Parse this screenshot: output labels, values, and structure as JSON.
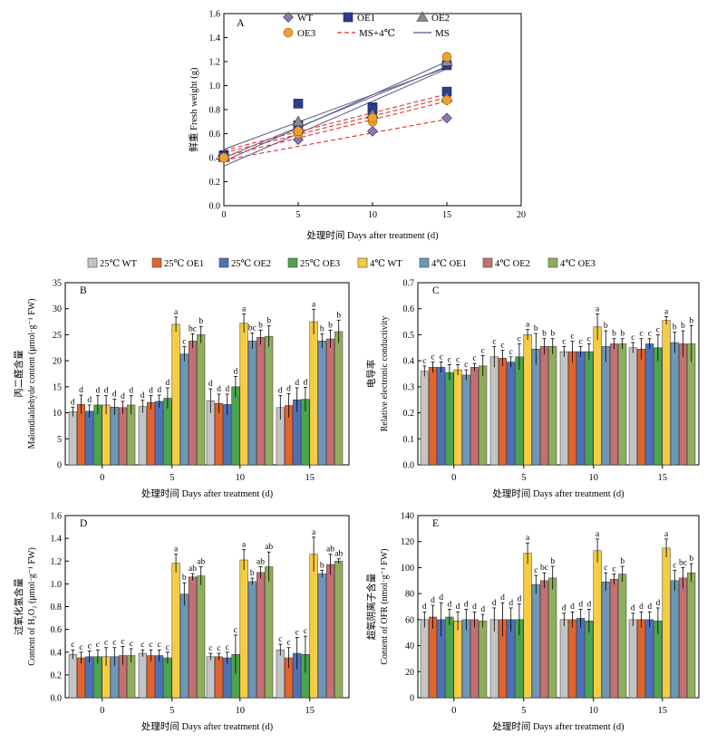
{
  "chart_data": [
    {
      "panel": "A",
      "type": "scatter",
      "xlabel": "处理时间 Days after treatment (d)",
      "ylabel": "鲜重 Fresh weight (g)",
      "xlim": [
        0,
        20
      ],
      "ylim": [
        0,
        1.6
      ],
      "xticks": [
        0,
        5,
        10,
        15,
        20
      ],
      "yticks": [
        0,
        0.2,
        0.4,
        0.6,
        0.8,
        1.0,
        1.2,
        1.4,
        1.6
      ],
      "legend": [
        "WT",
        "OE1",
        "OE2",
        "OE3",
        "MS+4℃",
        "MS"
      ],
      "x": [
        0,
        5,
        10,
        15
      ],
      "series": [
        {
          "name": "WT",
          "marker": "diamond",
          "color": "#8479b8",
          "ms": [
            0.4,
            0.63,
            0.74,
            0.88
          ],
          "cold": [
            0.41,
            0.55,
            0.62,
            0.73
          ]
        },
        {
          "name": "OE1",
          "marker": "square",
          "color": "#2a3d8f",
          "ms": [
            0.41,
            0.67,
            0.8,
            1.17
          ],
          "cold": [
            0.42,
            0.85,
            0.82,
            0.95
          ]
        },
        {
          "name": "OE2",
          "marker": "triangle",
          "color": "#8c8c8c",
          "ms": [
            0.41,
            0.7,
            0.76,
            1.2
          ],
          "cold": [
            0.4,
            0.64,
            0.77,
            0.9
          ]
        },
        {
          "name": "OE3",
          "marker": "circle",
          "color": "#f0a030",
          "ms": [
            0.4,
            0.62,
            0.73,
            1.24
          ],
          "cold": [
            0.4,
            0.6,
            0.7,
            0.88
          ]
        }
      ],
      "trendlines": [
        {
          "group": "MS",
          "style": "solid",
          "color": "#555a8a",
          "from": [
            0,
            0.37
          ],
          "to": [
            15,
            1.2
          ]
        },
        {
          "group": "MS",
          "style": "solid",
          "color": "#555a8a",
          "from": [
            0,
            0.4
          ],
          "to": [
            15,
            1.16
          ]
        },
        {
          "group": "MS",
          "style": "solid",
          "color": "#555a8a",
          "from": [
            0,
            0.33
          ],
          "to": [
            15,
            1.14
          ]
        },
        {
          "group": "MS",
          "style": "solid",
          "color": "#555a8a",
          "from": [
            0,
            0.47
          ],
          "to": [
            15,
            1.15
          ]
        },
        {
          "group": "MS+4℃",
          "style": "dashed",
          "color": "#e03030",
          "from": [
            0,
            0.44
          ],
          "to": [
            15,
            0.9
          ]
        },
        {
          "group": "MS+4℃",
          "style": "dashed",
          "color": "#e03030",
          "from": [
            0,
            0.41
          ],
          "to": [
            15,
            0.87
          ]
        },
        {
          "group": "MS+4℃",
          "style": "dashed",
          "color": "#e03030",
          "from": [
            0,
            0.38
          ],
          "to": [
            15,
            0.72
          ]
        },
        {
          "group": "MS+4℃",
          "style": "dashed",
          "color": "#e03030",
          "from": [
            0,
            0.46
          ],
          "to": [
            15,
            0.93
          ]
        }
      ]
    },
    {
      "panel": "B",
      "type": "bar",
      "xlabel": "处理时间 Days after treatment (d)",
      "ylabel_cn": "丙二醛含量",
      "ylabel_en": "Malondialdehyde content (μmol·g⁻¹ FW)",
      "ylim": [
        0,
        35
      ],
      "yticks": [
        0,
        5,
        10,
        15,
        20,
        25,
        30,
        35
      ],
      "categories": [
        "0",
        "5",
        "10",
        "15"
      ],
      "values": [
        [
          10.2,
          11.6,
          10.3,
          11.5,
          11.5,
          11.1,
          11.0,
          11.5
        ],
        [
          11.2,
          12.0,
          12.2,
          12.8,
          27.0,
          21.3,
          23.8,
          25.0
        ],
        [
          12.3,
          11.8,
          11.6,
          15.0,
          27.2,
          23.8,
          24.5,
          24.7
        ],
        [
          11.0,
          11.4,
          12.5,
          12.6,
          27.5,
          23.8,
          24.2,
          25.6
        ]
      ],
      "errors": [
        [
          0.9,
          1.8,
          1.2,
          1.8,
          1.8,
          1.5,
          1.2,
          1.8
        ],
        [
          1.2,
          1.3,
          1.2,
          2.0,
          1.4,
          1.4,
          1.4,
          1.6
        ],
        [
          2.3,
          1.8,
          2.0,
          2.0,
          1.8,
          1.5,
          1.4,
          2.0
        ],
        [
          2.3,
          2.3,
          2.3,
          2.3,
          2.4,
          1.4,
          1.7,
          2.2
        ]
      ],
      "letters": [
        [
          "d",
          "d",
          "d",
          "d",
          "d",
          "d",
          "d",
          "d"
        ],
        [
          "d",
          "d",
          "d",
          "d",
          "a",
          "c",
          "bc",
          "b"
        ],
        [
          "d",
          "d",
          "d",
          "d",
          "a",
          "bc",
          "b",
          "b"
        ],
        [
          "d",
          "d",
          "d",
          "d",
          "a",
          "b",
          "b",
          "b"
        ]
      ]
    },
    {
      "panel": "C",
      "type": "bar",
      "xlabel": "处理时间 Days after treatment (d)",
      "ylabel_cn": "电导率",
      "ylabel_en": "Relative electronic conductivity",
      "ylim": [
        0,
        0.7
      ],
      "yticks": [
        0,
        0.1,
        0.2,
        0.3,
        0.4,
        0.5,
        0.6,
        0.7
      ],
      "categories": [
        "0",
        "5",
        "10",
        "15"
      ],
      "values": [
        [
          0.36,
          0.375,
          0.375,
          0.355,
          0.365,
          0.345,
          0.375,
          0.38
        ],
        [
          0.415,
          0.41,
          0.395,
          0.415,
          0.5,
          0.445,
          0.455,
          0.455
        ],
        [
          0.435,
          0.435,
          0.435,
          0.435,
          0.53,
          0.455,
          0.465,
          0.465
        ],
        [
          0.45,
          0.445,
          0.465,
          0.45,
          0.555,
          0.47,
          0.465,
          0.465
        ]
      ],
      "errors": [
        [
          0.02,
          0.02,
          0.02,
          0.03,
          0.02,
          0.02,
          0.015,
          0.04
        ],
        [
          0.04,
          0.03,
          0.02,
          0.05,
          0.02,
          0.06,
          0.03,
          0.03
        ],
        [
          0.02,
          0.04,
          0.02,
          0.03,
          0.05,
          0.06,
          0.02,
          0.02
        ],
        [
          0.02,
          0.04,
          0.02,
          0.05,
          0.015,
          0.04,
          0.05,
          0.07
        ]
      ],
      "letters": [
        [
          "c",
          "c",
          "c",
          "c",
          "c",
          "c",
          "c",
          "c"
        ],
        [
          "c",
          "c",
          "c",
          "c",
          "a",
          "b",
          "b",
          "b"
        ],
        [
          "c",
          "c",
          "c",
          "c",
          "a",
          "b",
          "b",
          "b"
        ],
        [
          "c",
          "c",
          "c",
          "c",
          "a",
          "b",
          "b",
          "b"
        ]
      ]
    },
    {
      "panel": "D",
      "type": "bar",
      "xlabel": "处理时间 Days after treatment (d)",
      "ylabel_cn": "过氧化氢含量",
      "ylabel_en": "Content of H₂O₂ (μmol·g⁻¹ FW)",
      "ylim": [
        0,
        1.6
      ],
      "yticks": [
        0,
        0.2,
        0.4,
        0.6,
        0.8,
        1.0,
        1.2,
        1.4,
        1.6
      ],
      "categories": [
        "0",
        "5",
        "10",
        "15"
      ],
      "values": [
        [
          0.38,
          0.35,
          0.36,
          0.36,
          0.36,
          0.36,
          0.37,
          0.37
        ],
        [
          0.39,
          0.37,
          0.37,
          0.35,
          1.18,
          0.91,
          1.06,
          1.07
        ],
        [
          0.36,
          0.36,
          0.35,
          0.38,
          1.21,
          1.02,
          1.1,
          1.15
        ],
        [
          0.42,
          0.35,
          0.39,
          0.38,
          1.26,
          1.09,
          1.17,
          1.2
        ]
      ],
      "errors": [
        [
          0.04,
          0.05,
          0.05,
          0.06,
          0.08,
          0.08,
          0.08,
          0.06
        ],
        [
          0.03,
          0.05,
          0.05,
          0.05,
          0.08,
          0.1,
          0.03,
          0.08
        ],
        [
          0.03,
          0.03,
          0.05,
          0.17,
          0.09,
          0.03,
          0.05,
          0.13
        ],
        [
          0.05,
          0.09,
          0.14,
          0.16,
          0.15,
          0.03,
          0.09,
          0.02
        ]
      ],
      "letters": [
        [
          "c",
          "c",
          "c",
          "c",
          "c",
          "c",
          "c",
          "c"
        ],
        [
          "c",
          "c",
          "c",
          "c",
          "a",
          "b",
          "ab",
          "ab"
        ],
        [
          "c",
          "c",
          "c",
          "c",
          "a",
          "b",
          "ab",
          "ab"
        ],
        [
          "c",
          "c",
          "c",
          "c",
          "a",
          "b",
          "ab",
          "ab"
        ]
      ]
    },
    {
      "panel": "E",
      "type": "bar",
      "xlabel": "处理时间 Days after treatment (d)",
      "ylabel_cn": "超氧阴离子含量",
      "ylabel_en": "Content of OFR (nmol·g⁻¹ FW)",
      "ylim": [
        0,
        140
      ],
      "yticks": [
        0,
        20,
        40,
        60,
        80,
        100,
        120,
        140
      ],
      "categories": [
        "0",
        "5",
        "10",
        "15"
      ],
      "values": [
        [
          60,
          62,
          60,
          62,
          59,
          60,
          60,
          59
        ],
        [
          60,
          60,
          60,
          60,
          111,
          87,
          90,
          92
        ],
        [
          60,
          60,
          61,
          59,
          113,
          89,
          91,
          95
        ],
        [
          60,
          60,
          60,
          59,
          115,
          90,
          92,
          96
        ]
      ],
      "errors": [
        [
          6,
          9,
          13,
          6,
          7,
          8,
          6,
          5
        ],
        [
          9,
          13,
          9,
          12,
          8,
          7,
          6,
          9
        ],
        [
          5,
          6,
          7,
          9,
          9,
          7,
          4,
          6
        ],
        [
          5,
          6,
          6,
          10,
          7,
          8,
          8,
          7
        ]
      ],
      "letters": [
        [
          "d",
          "d",
          "d",
          "d",
          "d",
          "d",
          "d",
          "d"
        ],
        [
          "d",
          "d",
          "d",
          "d",
          "a",
          "c",
          "bc",
          "b"
        ],
        [
          "d",
          "d",
          "d",
          "d",
          "a",
          "c",
          "c",
          "b"
        ],
        [
          "d",
          "d",
          "d",
          "d",
          "a",
          "c",
          "bc",
          "b"
        ]
      ]
    }
  ],
  "bar_legend": [
    {
      "label": "25℃ WT",
      "color": "#c4c4c4"
    },
    {
      "label": "25℃ OE1",
      "color": "#e2642c"
    },
    {
      "label": "25℃ OE2",
      "color": "#4d72b8"
    },
    {
      "label": "25℃ OE3",
      "color": "#4aa450"
    },
    {
      "label": "4℃ WT",
      "color": "#f6cd42"
    },
    {
      "label": "4℃ OE1",
      "color": "#6c97b8"
    },
    {
      "label": "4℃ OE2",
      "color": "#c47071"
    },
    {
      "label": "4℃ OE3",
      "color": "#8fae5d"
    }
  ]
}
